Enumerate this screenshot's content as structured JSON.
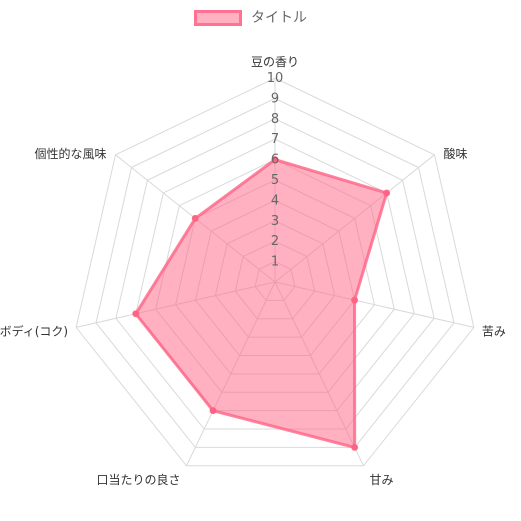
{
  "chart_data": {
    "type": "radar",
    "labels": [
      "豆の香り",
      "酸味",
      "苦み",
      "甘み",
      "口当たりの良さ",
      "ボディ(コク)",
      "個性的な風味"
    ],
    "series": [
      {
        "name": "タイトル",
        "values": [
          6,
          7,
          4,
          9,
          7,
          7,
          5
        ]
      }
    ],
    "scale": {
      "min": 0,
      "max": 10,
      "step": 1
    },
    "ticks": [
      "1",
      "2",
      "3",
      "4",
      "5",
      "6",
      "7",
      "8",
      "9",
      "10"
    ],
    "colors": {
      "fill": "rgba(255, 99, 132, 0.5)",
      "stroke": "rgba(255, 99, 132, 0.8)",
      "point": "#ff6384",
      "grid": "#d9d9d9",
      "text": "#666666"
    },
    "legend": "top",
    "grid": true
  }
}
